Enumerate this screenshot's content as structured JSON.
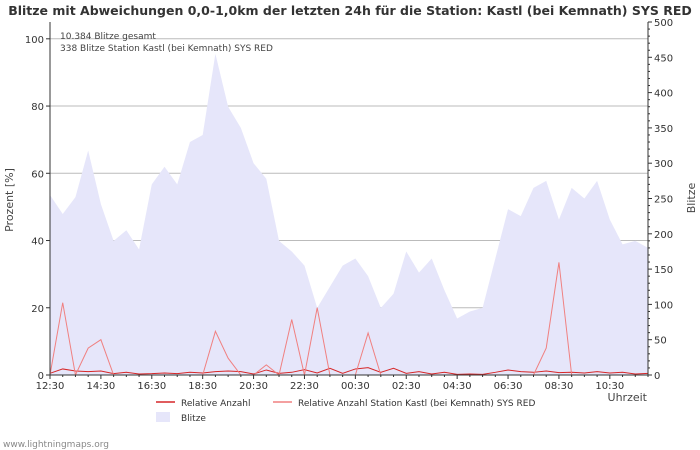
{
  "chart_data": {
    "type": "area+line",
    "title": "Blitze mit Abweichungen 0,0-1,0km der letzten 24h für die Station: Kastl (bei Kemnath) SYS RED",
    "annotations": [
      "10.384 Blitze gesamt",
      "338 Blitze Station Kastl (bei Kemnath) SYS RED"
    ],
    "ylabel_left": "Prozent   [%]",
    "ylabel_right": "Blitze",
    "xlabel": "Uhrzeit",
    "ylim_left": [
      0,
      105
    ],
    "ylim_right": [
      0,
      500
    ],
    "yticks_left": [
      0,
      20,
      40,
      60,
      80,
      100
    ],
    "yticks_right": [
      0,
      50,
      100,
      150,
      200,
      250,
      300,
      350,
      400,
      450,
      500
    ],
    "x_tick_labels": [
      "12:30",
      "14:30",
      "16:30",
      "18:30",
      "20:30",
      "22:30",
      "00:30",
      "02:30",
      "04:30",
      "06:30",
      "08:30",
      "10:30"
    ],
    "x_step_minutes": 30,
    "series": [
      {
        "name": "Blitze",
        "axis": "right",
        "style": "area",
        "color": "#e6e6fa",
        "values": [
          255,
          228,
          252,
          318,
          242,
          190,
          205,
          178,
          270,
          295,
          270,
          330,
          340,
          455,
          380,
          350,
          300,
          278,
          190,
          175,
          155,
          95,
          125,
          155,
          165,
          140,
          95,
          115,
          175,
          145,
          165,
          120,
          80,
          90,
          95,
          165,
          235,
          225,
          265,
          275,
          220,
          265,
          250,
          275,
          220,
          185,
          190,
          180
        ]
      },
      {
        "name": "Relative Anzahl",
        "axis": "left",
        "style": "line",
        "color": "#d62728",
        "values": [
          0.5,
          1.8,
          1.2,
          1.0,
          1.2,
          0.4,
          0.8,
          0.3,
          0.4,
          0.6,
          0.4,
          0.8,
          0.6,
          1.0,
          1.2,
          1.0,
          0.3,
          1.5,
          0.5,
          0.8,
          1.6,
          0.6,
          2.0,
          0.5,
          1.8,
          2.2,
          0.8,
          2.0,
          0.5,
          1.0,
          0.3,
          0.8,
          0.2,
          0.3,
          0.2,
          0.8,
          1.5,
          1.0,
          0.8,
          1.2,
          0.7,
          0.8,
          0.6,
          1.0,
          0.6,
          0.8,
          0.3,
          0.5
        ]
      },
      {
        "name": "Relative Anzahl Station Kastl (bei Kemnath) SYS RED",
        "axis": "left",
        "style": "line",
        "color": "#f08080",
        "values": [
          0,
          21.5,
          0,
          8,
          10.5,
          0,
          0,
          0,
          0,
          0,
          0,
          0,
          0,
          13,
          5,
          0,
          0,
          3,
          0,
          16.5,
          0,
          20,
          0,
          0,
          0,
          12.5,
          0,
          0,
          0,
          0,
          0,
          0,
          0,
          0,
          0,
          0,
          0,
          0,
          0,
          8,
          33.5,
          0,
          0,
          0,
          0,
          0,
          0,
          0
        ]
      }
    ],
    "legend": [
      "Relative Anzahl",
      "Relative Anzahl Station Kastl (bei Kemnath) SYS RED",
      "Blitze"
    ],
    "footer": "www.lightningmaps.org",
    "colors": {
      "grid": "#bbbbbb",
      "axis": "#333333",
      "text": "#333333"
    }
  }
}
